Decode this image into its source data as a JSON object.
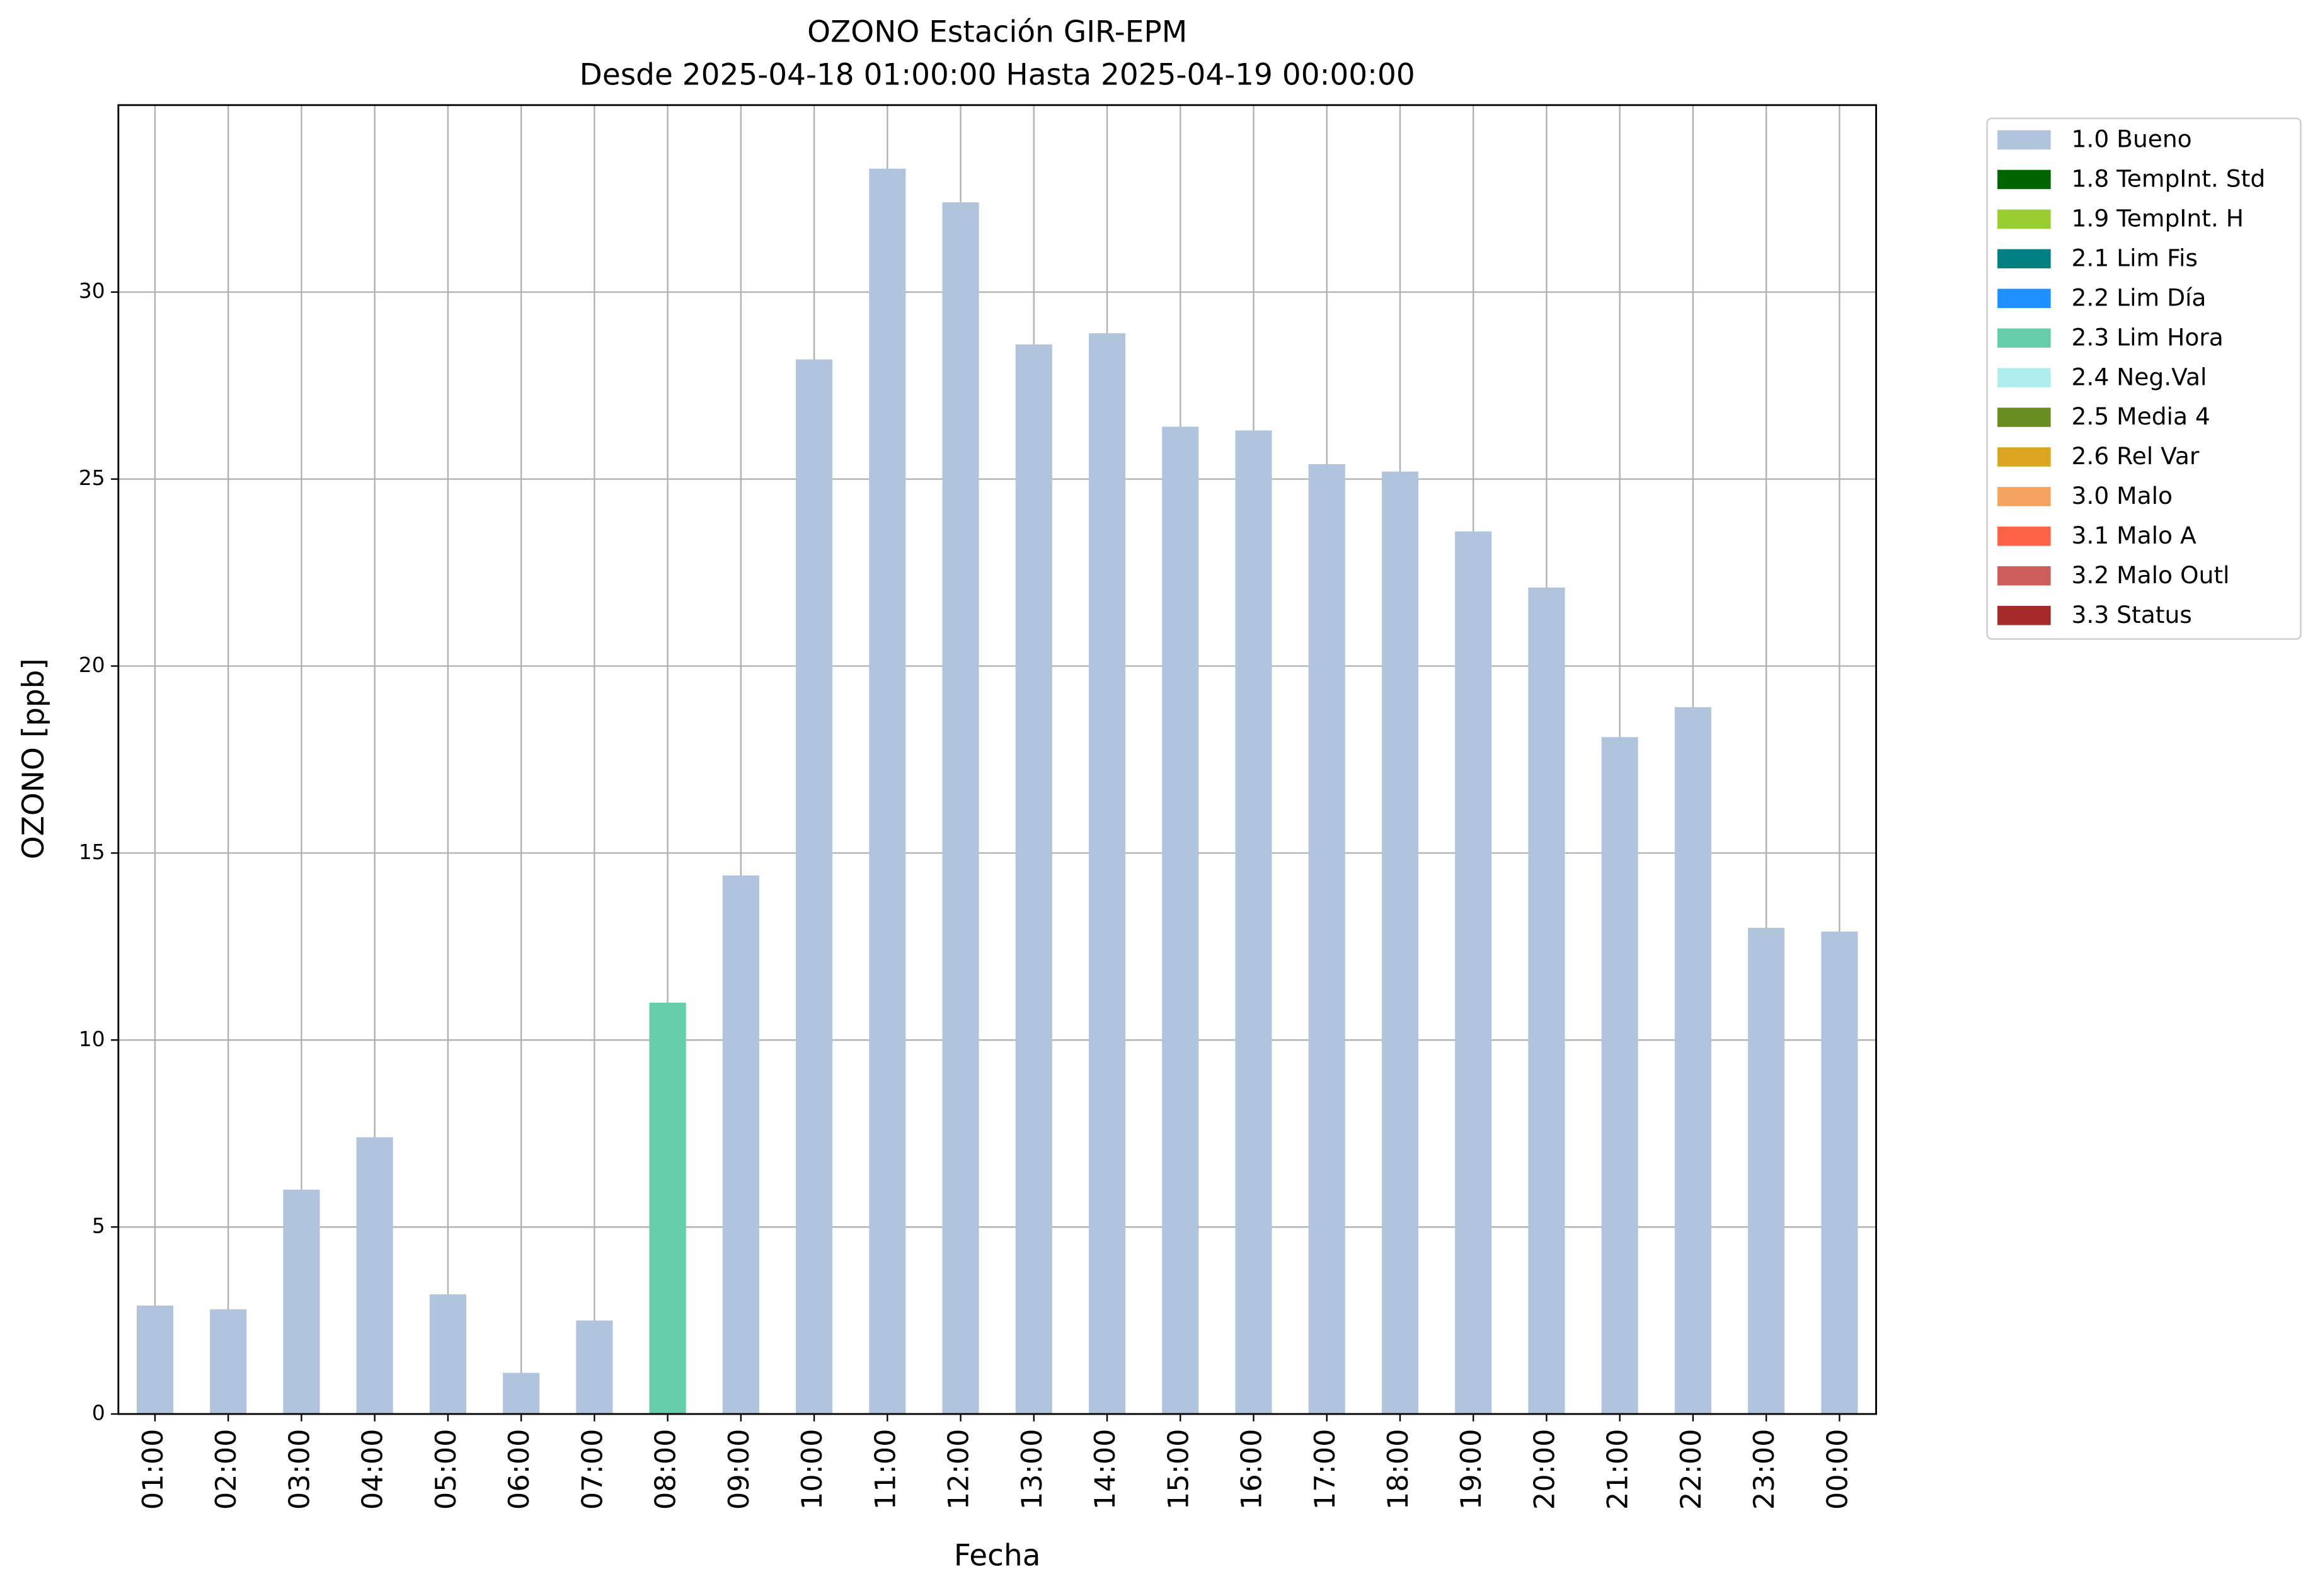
{
  "chart_data": {
    "type": "bar",
    "stacked": true,
    "title": "OZONO Estación GIR-EPM",
    "subtitle": "Desde 2025-04-18 01:00:00 Hasta 2025-04-19 00:00:00",
    "x_label": "Fecha",
    "y_label": "OZONO [ppb]",
    "categories": [
      "01:00",
      "02:00",
      "03:00",
      "04:00",
      "05:00",
      "06:00",
      "07:00",
      "08:00",
      "09:00",
      "10:00",
      "11:00",
      "12:00",
      "13:00",
      "14:00",
      "15:00",
      "16:00",
      "17:00",
      "18:00",
      "19:00",
      "20:00",
      "21:00",
      "22:00",
      "23:00",
      "00:00"
    ],
    "series": [
      {
        "name": "1.0 Bueno",
        "color": "#b0c4de",
        "values": [
          2.9,
          2.8,
          6.0,
          7.4,
          3.2,
          1.1,
          2.5,
          null,
          14.4,
          28.2,
          33.3,
          32.4,
          28.6,
          28.9,
          26.4,
          26.3,
          25.4,
          25.2,
          23.6,
          22.1,
          18.1,
          18.9,
          13.0,
          12.9
        ]
      },
      {
        "name": "1.8 TempInt. Std",
        "color": "#006400",
        "values": [
          null,
          null,
          null,
          null,
          null,
          null,
          null,
          null,
          null,
          null,
          null,
          null,
          null,
          null,
          null,
          null,
          null,
          null,
          null,
          null,
          null,
          null,
          null,
          null
        ]
      },
      {
        "name": "1.9 TempInt. H",
        "color": "#9acd32",
        "values": [
          null,
          null,
          null,
          null,
          null,
          null,
          null,
          null,
          null,
          null,
          null,
          null,
          null,
          null,
          null,
          null,
          null,
          null,
          null,
          null,
          null,
          null,
          null,
          null
        ]
      },
      {
        "name": "2.1 Lim Fis",
        "color": "#008080",
        "values": [
          null,
          null,
          null,
          null,
          null,
          null,
          null,
          null,
          null,
          null,
          null,
          null,
          null,
          null,
          null,
          null,
          null,
          null,
          null,
          null,
          null,
          null,
          null,
          null
        ]
      },
      {
        "name": "2.2 Lim Día",
        "color": "#1e90ff",
        "values": [
          null,
          null,
          null,
          null,
          null,
          null,
          null,
          null,
          null,
          null,
          null,
          null,
          null,
          null,
          null,
          null,
          null,
          null,
          null,
          null,
          null,
          null,
          null,
          null
        ]
      },
      {
        "name": "2.3 Lim Hora",
        "color": "#66cdaa",
        "values": [
          null,
          null,
          null,
          null,
          null,
          null,
          null,
          11.0,
          null,
          null,
          null,
          null,
          null,
          null,
          null,
          null,
          null,
          null,
          null,
          null,
          null,
          null,
          null,
          null
        ]
      },
      {
        "name": "2.4 Neg.Val",
        "color": "#afeeee",
        "values": [
          null,
          null,
          null,
          null,
          null,
          null,
          null,
          null,
          null,
          null,
          null,
          null,
          null,
          null,
          null,
          null,
          null,
          null,
          null,
          null,
          null,
          null,
          null,
          null
        ]
      },
      {
        "name": "2.5 Media 4",
        "color": "#6b8e23",
        "values": [
          null,
          null,
          null,
          null,
          null,
          null,
          null,
          null,
          null,
          null,
          null,
          null,
          null,
          null,
          null,
          null,
          null,
          null,
          null,
          null,
          null,
          null,
          null,
          null
        ]
      },
      {
        "name": "2.6 Rel Var",
        "color": "#daa520",
        "values": [
          null,
          null,
          null,
          null,
          null,
          null,
          null,
          null,
          null,
          null,
          null,
          null,
          null,
          null,
          null,
          null,
          null,
          null,
          null,
          null,
          null,
          null,
          null,
          null
        ]
      },
      {
        "name": "3.0 Malo",
        "color": "#f4a460",
        "values": [
          null,
          null,
          null,
          null,
          null,
          null,
          null,
          null,
          null,
          null,
          null,
          null,
          null,
          null,
          null,
          null,
          null,
          null,
          null,
          null,
          null,
          null,
          null,
          null
        ]
      },
      {
        "name": "3.1 Malo A",
        "color": "#ff6347",
        "values": [
          null,
          null,
          null,
          null,
          null,
          null,
          null,
          null,
          null,
          null,
          null,
          null,
          null,
          null,
          null,
          null,
          null,
          null,
          null,
          null,
          null,
          null,
          null,
          null
        ]
      },
      {
        "name": "3.2 Malo Outl",
        "color": "#cd5c5c",
        "values": [
          null,
          null,
          null,
          null,
          null,
          null,
          null,
          null,
          null,
          null,
          null,
          null,
          null,
          null,
          null,
          null,
          null,
          null,
          null,
          null,
          null,
          null,
          null,
          null
        ]
      },
      {
        "name": "3.3 Status",
        "color": "#a52a2a",
        "values": [
          null,
          null,
          null,
          null,
          null,
          null,
          null,
          null,
          null,
          null,
          null,
          null,
          null,
          null,
          null,
          null,
          null,
          null,
          null,
          null,
          null,
          null,
          null,
          null
        ]
      }
    ],
    "ylim": [
      0,
      35
    ],
    "yticks": [
      0,
      5,
      10,
      15,
      20,
      25,
      30
    ],
    "grid": true,
    "legend": "outside-right"
  }
}
